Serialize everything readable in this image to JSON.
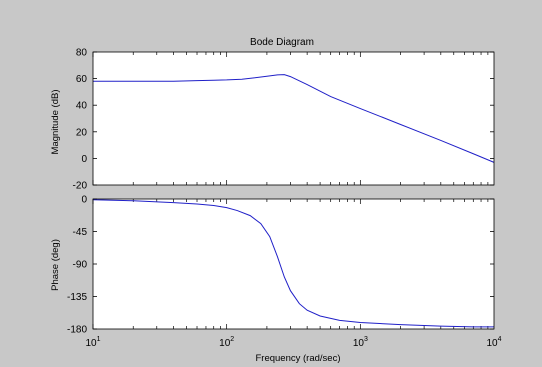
{
  "colors": {
    "figure_bg": "#c8c8c8",
    "axes_bg": "#ffffff",
    "axis_line": "#000000",
    "curve": "#2020c8"
  },
  "chart_data": [
    {
      "type": "line",
      "title": "Bode Diagram",
      "xlabel": "",
      "ylabel": "Magnitude (dB)",
      "xscale": "log",
      "xlim": [
        10,
        10000
      ],
      "ylim": [
        -20,
        80
      ],
      "yticks": [
        "-20",
        "0",
        "20",
        "40",
        "60",
        "80"
      ],
      "grid": false,
      "series": [
        {
          "x": [
            10,
            20,
            40,
            60,
            80,
            100,
            130,
            160,
            200,
            240,
            270,
            300,
            400,
            600,
            1000,
            2000,
            4000,
            7000,
            10000
          ],
          "y": [
            58,
            58,
            58,
            58.5,
            58.8,
            59,
            59.5,
            60.5,
            61.8,
            62.8,
            63,
            61.5,
            55.5,
            46.5,
            37.5,
            25.5,
            13.5,
            3.5,
            -3
          ]
        }
      ]
    },
    {
      "type": "line",
      "title": "",
      "xlabel": "Frequency (rad/sec)",
      "ylabel": "Phase (deg)",
      "xscale": "log",
      "xlim": [
        10,
        10000
      ],
      "ylim": [
        -180,
        0
      ],
      "yticks": [
        "-180",
        "-135",
        "-90",
        "-45",
        "0"
      ],
      "xtick_bases": [
        "10",
        "10",
        "10",
        "10"
      ],
      "xtick_exponents": [
        "1",
        "2",
        "3",
        "4"
      ],
      "grid": false,
      "series": [
        {
          "x": [
            10,
            20,
            40,
            60,
            80,
            100,
            120,
            150,
            180,
            210,
            240,
            270,
            300,
            350,
            400,
            500,
            700,
            1000,
            2000,
            4000,
            7000,
            10000
          ],
          "y": [
            -1,
            -2.5,
            -5,
            -7,
            -9,
            -12,
            -16,
            -23,
            -34,
            -52,
            -80,
            -108,
            -127,
            -145,
            -154,
            -162,
            -168,
            -171,
            -174,
            -176,
            -177,
            -177
          ]
        }
      ]
    }
  ]
}
